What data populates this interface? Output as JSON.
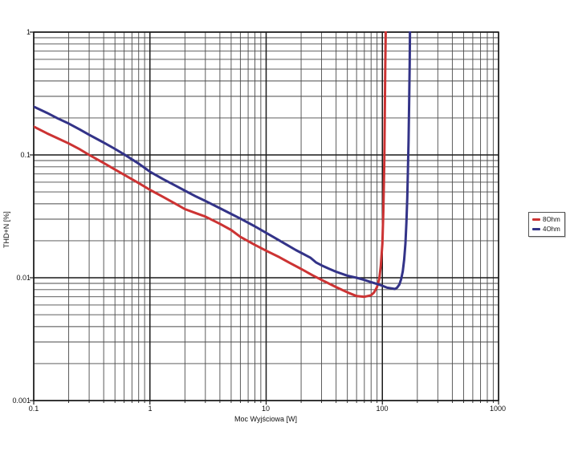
{
  "chart_data": {
    "type": "line",
    "title": "",
    "xlabel": "Moc Wyjściowa [W]",
    "ylabel": "THD+N [%]",
    "x_scale": "log",
    "y_scale": "log",
    "xlim": [
      0.1,
      1000
    ],
    "ylim": [
      0.001,
      1
    ],
    "x_tick_labels": [
      "0.1",
      "1",
      "10",
      "100",
      "1000"
    ],
    "y_tick_labels": [
      "1",
      "0.1",
      "0.01",
      "0.001"
    ],
    "grid": "log major and minor, both axes",
    "legend_position": "right-outside",
    "colors": {
      "grid_minor": "#4a4a4a",
      "grid_major": "#1a1a1a",
      "series_8ohm": "#cc3333",
      "series_4ohm": "#333388"
    },
    "series": [
      {
        "name": "8Ohm",
        "color": "#cc3333",
        "points": [
          [
            0.1,
            0.17
          ],
          [
            0.13,
            0.15
          ],
          [
            0.16,
            0.137
          ],
          [
            0.2,
            0.124
          ],
          [
            0.25,
            0.111
          ],
          [
            0.3,
            0.1
          ],
          [
            0.4,
            0.086
          ],
          [
            0.5,
            0.076
          ],
          [
            0.6,
            0.069
          ],
          [
            0.8,
            0.059
          ],
          [
            1,
            0.052
          ],
          [
            1.3,
            0.0455
          ],
          [
            1.7,
            0.0395
          ],
          [
            2,
            0.0362
          ],
          [
            2.5,
            0.0335
          ],
          [
            3,
            0.0315
          ],
          [
            4,
            0.0275
          ],
          [
            5,
            0.0245
          ],
          [
            6,
            0.0215
          ],
          [
            8,
            0.0185
          ],
          [
            10,
            0.0166
          ],
          [
            13,
            0.0147
          ],
          [
            16,
            0.0132
          ],
          [
            20,
            0.0118
          ],
          [
            25,
            0.0105
          ],
          [
            30,
            0.0096
          ],
          [
            40,
            0.0084
          ],
          [
            50,
            0.0076
          ],
          [
            60,
            0.0071
          ],
          [
            70,
            0.007
          ],
          [
            80,
            0.0072
          ],
          [
            85,
            0.0076
          ],
          [
            90,
            0.0084
          ],
          [
            94,
            0.0098
          ],
          [
            97,
            0.0125
          ],
          [
            100,
            0.019
          ],
          [
            102,
            0.035
          ],
          [
            104,
            0.09
          ],
          [
            105,
            0.22
          ],
          [
            106,
            0.55
          ],
          [
            107,
            1.1
          ]
        ]
      },
      {
        "name": "4Ohm",
        "color": "#333388",
        "points": [
          [
            0.1,
            0.247
          ],
          [
            0.13,
            0.22
          ],
          [
            0.16,
            0.199
          ],
          [
            0.2,
            0.18
          ],
          [
            0.25,
            0.161
          ],
          [
            0.3,
            0.146
          ],
          [
            0.4,
            0.126
          ],
          [
            0.5,
            0.112
          ],
          [
            0.6,
            0.101
          ],
          [
            0.8,
            0.085
          ],
          [
            1,
            0.073
          ],
          [
            1.3,
            0.0635
          ],
          [
            1.7,
            0.0555
          ],
          [
            2,
            0.0512
          ],
          [
            2.5,
            0.0458
          ],
          [
            3,
            0.0422
          ],
          [
            4,
            0.0368
          ],
          [
            5,
            0.0331
          ],
          [
            6,
            0.0303
          ],
          [
            8,
            0.0262
          ],
          [
            10,
            0.0232
          ],
          [
            12,
            0.021
          ],
          [
            15,
            0.0186
          ],
          [
            18,
            0.0168
          ],
          [
            21,
            0.0156
          ],
          [
            24,
            0.0146
          ],
          [
            27,
            0.0133
          ],
          [
            30,
            0.0126
          ],
          [
            35,
            0.0118
          ],
          [
            40,
            0.0112
          ],
          [
            50,
            0.0104
          ],
          [
            60,
            0.01
          ],
          [
            70,
            0.0096
          ],
          [
            80,
            0.0092
          ],
          [
            90,
            0.0089
          ],
          [
            100,
            0.0086
          ],
          [
            110,
            0.0083
          ],
          [
            120,
            0.0082
          ],
          [
            128,
            0.0081
          ],
          [
            134,
            0.0083
          ],
          [
            140,
            0.0088
          ],
          [
            145,
            0.0097
          ],
          [
            150,
            0.0113
          ],
          [
            154,
            0.014
          ],
          [
            158,
            0.019
          ],
          [
            161,
            0.028
          ],
          [
            164,
            0.045
          ],
          [
            166,
            0.075
          ],
          [
            168,
            0.13
          ],
          [
            170,
            0.26
          ],
          [
            172,
            0.55
          ],
          [
            173,
            1.1
          ]
        ]
      }
    ]
  }
}
